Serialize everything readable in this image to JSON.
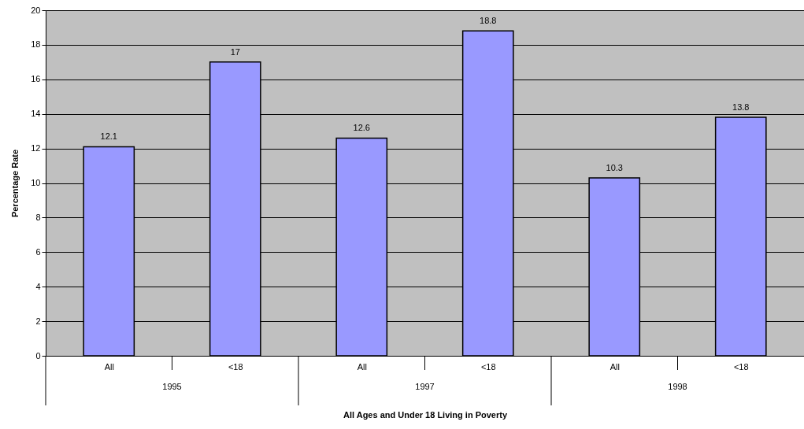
{
  "chart_data": {
    "type": "bar",
    "xlabel": "All Ages and Under 18 Living in Poverty",
    "ylabel": "Percentage Rate",
    "categories": [
      "All",
      "<18",
      "All",
      "<18",
      "All",
      "<18"
    ],
    "values": [
      12.1,
      17,
      12.6,
      18.8,
      10.3,
      13.8
    ],
    "color": "#9999ff",
    "annotations": [
      "1995",
      "1997",
      "1998"
    ],
    "ylim": [
      0,
      20
    ],
    "yticks": [
      0,
      2,
      4,
      6,
      8,
      10,
      12,
      14,
      16,
      18,
      20
    ],
    "grid": "y",
    "data_labels": true
  }
}
